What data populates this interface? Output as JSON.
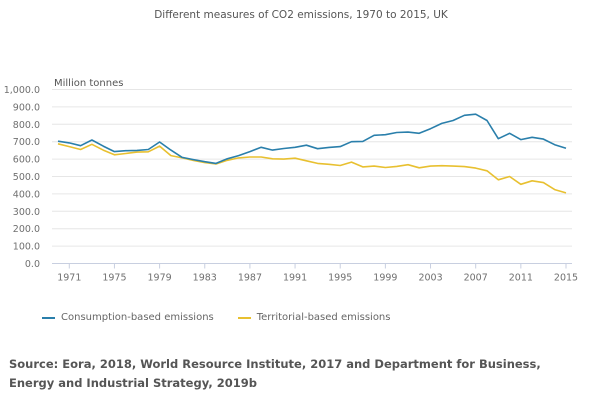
{
  "chart_data": {
    "type": "line",
    "title": "Different measures of CO2 emissions, 1970 to 2015, UK",
    "xlabel": "",
    "ylabel": "Million tonnes",
    "ylim": [
      0,
      1000
    ],
    "xlim": [
      1970,
      2015
    ],
    "y_ticks": [
      "0.0",
      "100.0",
      "200.0",
      "300.0",
      "400.0",
      "500.0",
      "600.0",
      "700.0",
      "800.0",
      "900.0",
      "1,000.0"
    ],
    "y_tick_values": [
      0,
      100,
      200,
      300,
      400,
      500,
      600,
      700,
      800,
      900,
      1000
    ],
    "x_ticks": [
      "1971",
      "1975",
      "1979",
      "1983",
      "1987",
      "1991",
      "1995",
      "1999",
      "2003",
      "2007",
      "2011",
      "2015"
    ],
    "x_tick_values": [
      1971,
      1975,
      1979,
      1983,
      1987,
      1991,
      1995,
      1999,
      2003,
      2007,
      2011,
      2015
    ],
    "grid": "horizontal",
    "legend_position": "bottom-left",
    "x": [
      1970,
      1971,
      1972,
      1973,
      1974,
      1975,
      1976,
      1977,
      1978,
      1979,
      1980,
      1981,
      1982,
      1983,
      1984,
      1985,
      1986,
      1987,
      1988,
      1989,
      1990,
      1991,
      1992,
      1993,
      1994,
      1995,
      1996,
      1997,
      1998,
      1999,
      2000,
      2001,
      2002,
      2003,
      2004,
      2005,
      2006,
      2007,
      2008,
      2009,
      2010,
      2011,
      2012,
      2013,
      2014,
      2015
    ],
    "series": [
      {
        "name": "Consumption-based emissions",
        "color": "#2a7fab",
        "values": [
          703,
          693,
          677,
          710,
          675,
          643,
          648,
          650,
          655,
          698,
          652,
          610,
          597,
          585,
          575,
          602,
          620,
          643,
          668,
          652,
          661,
          668,
          680,
          660,
          667,
          672,
          700,
          702,
          737,
          740,
          753,
          755,
          748,
          775,
          805,
          822,
          852,
          858,
          822,
          717,
          748,
          712,
          725,
          715,
          683,
          662
        ]
      },
      {
        "name": "Territorial-based emissions",
        "color": "#e8c030",
        "values": [
          688,
          672,
          655,
          685,
          652,
          625,
          632,
          640,
          642,
          675,
          620,
          607,
          592,
          580,
          572,
          593,
          607,
          612,
          612,
          602,
          600,
          605,
          590,
          575,
          570,
          563,
          583,
          555,
          560,
          552,
          558,
          568,
          550,
          560,
          562,
          560,
          557,
          548,
          533,
          481,
          500,
          455,
          475,
          465,
          425,
          406
        ]
      }
    ]
  },
  "legend": {
    "items": [
      {
        "label": "Consumption-based emissions",
        "color": "#2a7fab"
      },
      {
        "label": "Territorial-based emissions",
        "color": "#e8c030"
      }
    ]
  },
  "source": "Source: Eora, 2018, World Resource Institute, 2017 and Department for Business, Energy and Industrial Strategy, 2019b"
}
